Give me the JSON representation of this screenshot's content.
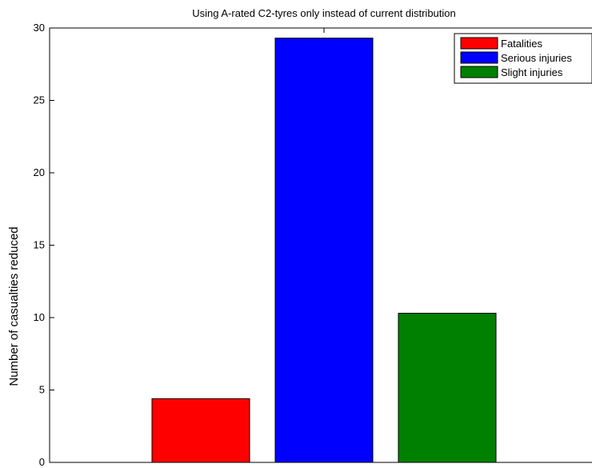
{
  "chart_data": {
    "type": "bar",
    "title": "Using A-rated C2-tyres only instead of current distribution",
    "xlabel": "",
    "ylabel": "Number of casualties reduced",
    "ylim": [
      0,
      30
    ],
    "yticks": [
      0,
      5,
      10,
      15,
      20,
      25,
      30
    ],
    "grid": false,
    "legend_position": "top-right",
    "series": [
      {
        "name": "Fatalities",
        "value": 4.4,
        "color": "#ff0000"
      },
      {
        "name": "Serious injuries",
        "value": 29.3,
        "color": "#0000ff"
      },
      {
        "name": "Slight injuries",
        "value": 10.3,
        "color": "#008000"
      }
    ]
  }
}
